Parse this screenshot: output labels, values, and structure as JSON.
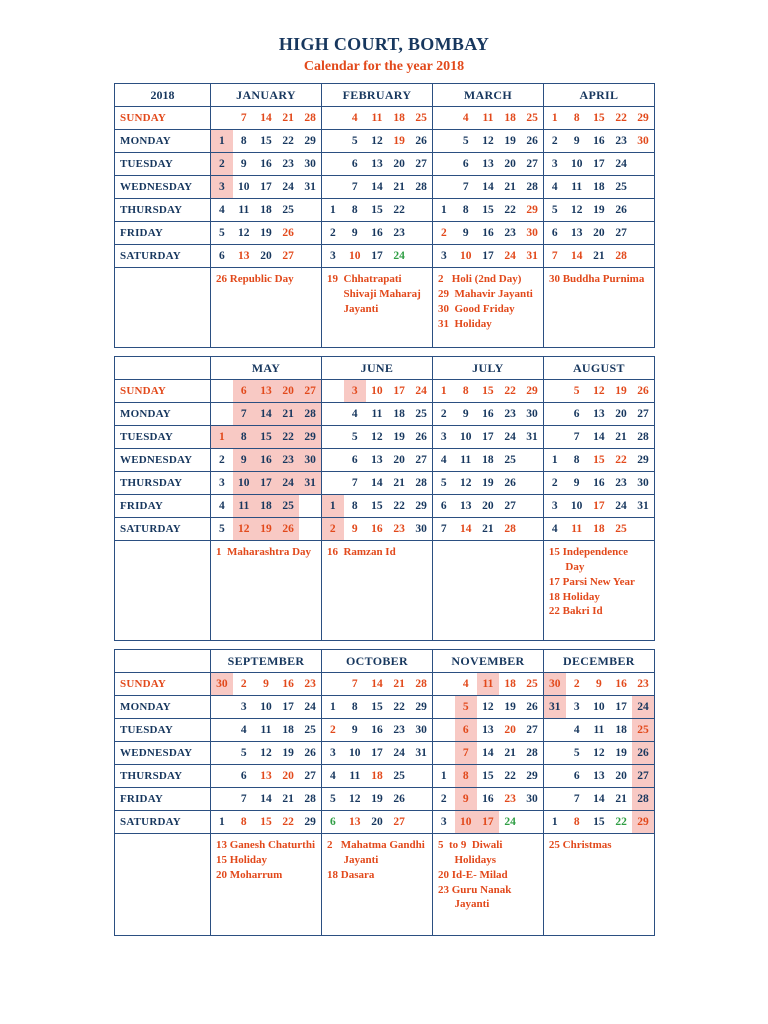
{
  "page": {
    "title": "HIGH COURT, BOMBAY",
    "subtitle": "Calendar for the year 2018"
  },
  "weekday_labels": [
    "SUNDAY",
    "MONDAY",
    "TUESDAY",
    "WEDNESDAY",
    "THURSDAY",
    "FRIDAY",
    "SATURDAY"
  ],
  "colors": {
    "navy": "#17375E",
    "accent": "#E2491B",
    "green": "#2F9E44",
    "pink": "#F8C9C4",
    "border": "#2B4F81"
  },
  "blocks": [
    {
      "corner": "2018",
      "months": [
        {
          "name": "JANUARY",
          "rows": [
            [
              "",
              "7h",
              "14h",
              "21h",
              "28h"
            ],
            [
              "1np",
              "8n",
              "15n",
              "22n",
              "29n"
            ],
            [
              "2np",
              "9n",
              "16n",
              "23n",
              "30n"
            ],
            [
              "3np",
              "10n",
              "17n",
              "24n",
              "31n"
            ],
            [
              "4n",
              "11n",
              "18n",
              "25n",
              ""
            ],
            [
              "5n",
              "12n",
              "19n",
              "26h",
              ""
            ],
            [
              "6n",
              "13h",
              "20n",
              "27h",
              ""
            ]
          ],
          "notes": [
            "26 Republic Day"
          ]
        },
        {
          "name": "FEBRUARY",
          "rows": [
            [
              "",
              "4h",
              "11h",
              "18h",
              "25h"
            ],
            [
              "",
              "5n",
              "12n",
              "19h",
              "26n"
            ],
            [
              "",
              "6n",
              "13n",
              "20n",
              "27n"
            ],
            [
              "",
              "7n",
              "14n",
              "21n",
              "28n"
            ],
            [
              "1n",
              "8n",
              "15n",
              "22n",
              ""
            ],
            [
              "2n",
              "9n",
              "16n",
              "23n",
              ""
            ],
            [
              "3n",
              "10h",
              "17n",
              "24g",
              ""
            ]
          ],
          "notes": [
            "19  Chhatrapati\n      Shivaji Maharaj\n      Jayanti"
          ]
        },
        {
          "name": "MARCH",
          "rows": [
            [
              "",
              "4h",
              "11h",
              "18h",
              "25h"
            ],
            [
              "",
              "5n",
              "12n",
              "19n",
              "26n"
            ],
            [
              "",
              "6n",
              "13n",
              "20n",
              "27n"
            ],
            [
              "",
              "7n",
              "14n",
              "21n",
              "28n"
            ],
            [
              "1n",
              "8n",
              "15n",
              "22n",
              "29h"
            ],
            [
              "2h",
              "9n",
              "16n",
              "23n",
              "30h"
            ],
            [
              "3n",
              "10h",
              "17n",
              "24h",
              "31h"
            ]
          ],
          "notes": [
            "2   Holi (2nd Day)",
            "29  Mahavir Jayanti",
            "30  Good Friday",
            "31  Holiday"
          ]
        },
        {
          "name": "APRIL",
          "rows": [
            [
              "1h",
              "8h",
              "15h",
              "22h",
              "29h"
            ],
            [
              "2n",
              "9n",
              "16n",
              "23n",
              "30h"
            ],
            [
              "3n",
              "10n",
              "17n",
              "24n",
              ""
            ],
            [
              "4n",
              "11n",
              "18n",
              "25n",
              ""
            ],
            [
              "5n",
              "12n",
              "19n",
              "26n",
              ""
            ],
            [
              "6n",
              "13n",
              "20n",
              "27n",
              ""
            ],
            [
              "7h",
              "14h",
              "21n",
              "28h",
              ""
            ]
          ],
          "notes": [
            "30 Buddha Purnima"
          ]
        }
      ]
    },
    {
      "corner": "",
      "months": [
        {
          "name": "MAY",
          "rows": [
            [
              "",
              "6hp",
              "13hp",
              "20hp",
              "27hp"
            ],
            [
              "",
              "7np",
              "14np",
              "21np",
              "28np"
            ],
            [
              "1hp",
              "8np",
              "15np",
              "22np",
              "29np"
            ],
            [
              "2n",
              "9np",
              "16np",
              "23np",
              "30np"
            ],
            [
              "3n",
              "10np",
              "17np",
              "24np",
              "31np"
            ],
            [
              "4n",
              "11np",
              "18np",
              "25np",
              ""
            ],
            [
              "5n",
              "12hp",
              "19hp",
              "26hp",
              ""
            ]
          ],
          "notes": [
            "1  Maharashtra Day"
          ]
        },
        {
          "name": "JUNE",
          "rows": [
            [
              "",
              "3hp",
              "10h",
              "17h",
              "24h"
            ],
            [
              "",
              "4n",
              "11n",
              "18n",
              "25n"
            ],
            [
              "",
              "5n",
              "12n",
              "19n",
              "26n"
            ],
            [
              "",
              "6n",
              "13n",
              "20n",
              "27n"
            ],
            [
              "",
              "7n",
              "14n",
              "21n",
              "28n"
            ],
            [
              "1np",
              "8n",
              "15n",
              "22n",
              "29n"
            ],
            [
              "2hp",
              "9h",
              "16h",
              "23h",
              "30n"
            ]
          ],
          "notes": [
            "16  Ramzan Id"
          ]
        },
        {
          "name": "JULY",
          "rows": [
            [
              "1h",
              "8h",
              "15h",
              "22h",
              "29h"
            ],
            [
              "2n",
              "9n",
              "16n",
              "23n",
              "30n"
            ],
            [
              "3n",
              "10n",
              "17n",
              "24n",
              "31n"
            ],
            [
              "4n",
              "11n",
              "18n",
              "25n",
              ""
            ],
            [
              "5n",
              "12n",
              "19n",
              "26n",
              ""
            ],
            [
              "6n",
              "13n",
              "20n",
              "27n",
              ""
            ],
            [
              "7n",
              "14h",
              "21n",
              "28h",
              ""
            ]
          ],
          "notes": []
        },
        {
          "name": "AUGUST",
          "rows": [
            [
              "",
              "5h",
              "12h",
              "19h",
              "26h"
            ],
            [
              "",
              "6n",
              "13n",
              "20n",
              "27n"
            ],
            [
              "",
              "7n",
              "14n",
              "21n",
              "28n"
            ],
            [
              "1n",
              "8n",
              "15h",
              "22h",
              "29n"
            ],
            [
              "2n",
              "9n",
              "16n",
              "23n",
              "30n"
            ],
            [
              "3n",
              "10n",
              "17h",
              "24n",
              "31n"
            ],
            [
              "4n",
              "11h",
              "18h",
              "25h",
              ""
            ]
          ],
          "notes": [
            "15 Independence\n      Day",
            "17 Parsi New Year",
            "18 Holiday",
            "22 Bakri Id"
          ]
        }
      ]
    },
    {
      "corner": "",
      "months": [
        {
          "name": "SEPTEMBER",
          "rows": [
            [
              "30hp",
              "2h",
              "9h",
              "16h",
              "23h"
            ],
            [
              "",
              "3n",
              "10n",
              "17n",
              "24n"
            ],
            [
              "",
              "4n",
              "11n",
              "18n",
              "25n"
            ],
            [
              "",
              "5n",
              "12n",
              "19n",
              "26n"
            ],
            [
              "",
              "6n",
              "13h",
              "20h",
              "27n"
            ],
            [
              "",
              "7n",
              "14n",
              "21n",
              "28n"
            ],
            [
              "1n",
              "8h",
              "15h",
              "22h",
              "29n"
            ]
          ],
          "notes": [
            "13 Ganesh Chaturthi",
            "15 Holiday",
            "20 Moharrum"
          ]
        },
        {
          "name": "OCTOBER",
          "rows": [
            [
              "",
              "7h",
              "14h",
              "21h",
              "28h"
            ],
            [
              "1n",
              "8n",
              "15n",
              "22n",
              "29n"
            ],
            [
              "2h",
              "9n",
              "16n",
              "23n",
              "30n"
            ],
            [
              "3n",
              "10n",
              "17n",
              "24n",
              "31n"
            ],
            [
              "4n",
              "11n",
              "18h",
              "25n",
              ""
            ],
            [
              "5n",
              "12n",
              "19n",
              "26n",
              ""
            ],
            [
              "6g",
              "13h",
              "20n",
              "27h",
              ""
            ]
          ],
          "notes": [
            "2   Mahatma Gandhi\n      Jayanti",
            "18 Dasara"
          ]
        },
        {
          "name": "NOVEMBER",
          "rows": [
            [
              "",
              "4h",
              "11hp",
              "18h",
              "25h"
            ],
            [
              "",
              "5hp",
              "12n",
              "19n",
              "26n"
            ],
            [
              "",
              "6hp",
              "13n",
              "20h",
              "27n"
            ],
            [
              "",
              "7hp",
              "14n",
              "21n",
              "28n"
            ],
            [
              "1n",
              "8hp",
              "15n",
              "22n",
              "29n"
            ],
            [
              "2n",
              "9hp",
              "16n",
              "23h",
              "30n"
            ],
            [
              "3n",
              "10hp",
              "17hp",
              "24g",
              ""
            ]
          ],
          "notes": [
            "5  to 9  Diwali\n      Holidays",
            "20 Id-E- Milad",
            "23 Guru Nanak\n      Jayanti"
          ]
        },
        {
          "name": "DECEMBER",
          "rows": [
            [
              "30hp",
              "2h",
              "9h",
              "16h",
              "23h"
            ],
            [
              "31np",
              "3n",
              "10n",
              "17n",
              "24np"
            ],
            [
              "",
              "4n",
              "11n",
              "18n",
              "25hp"
            ],
            [
              "",
              "5n",
              "12n",
              "19n",
              "26np"
            ],
            [
              "",
              "6n",
              "13n",
              "20n",
              "27np"
            ],
            [
              "",
              "7n",
              "14n",
              "21n",
              "28np"
            ],
            [
              "1n",
              "8h",
              "15n",
              "22g",
              "29hp"
            ]
          ],
          "notes": [
            "25 Christmas"
          ]
        }
      ]
    }
  ]
}
